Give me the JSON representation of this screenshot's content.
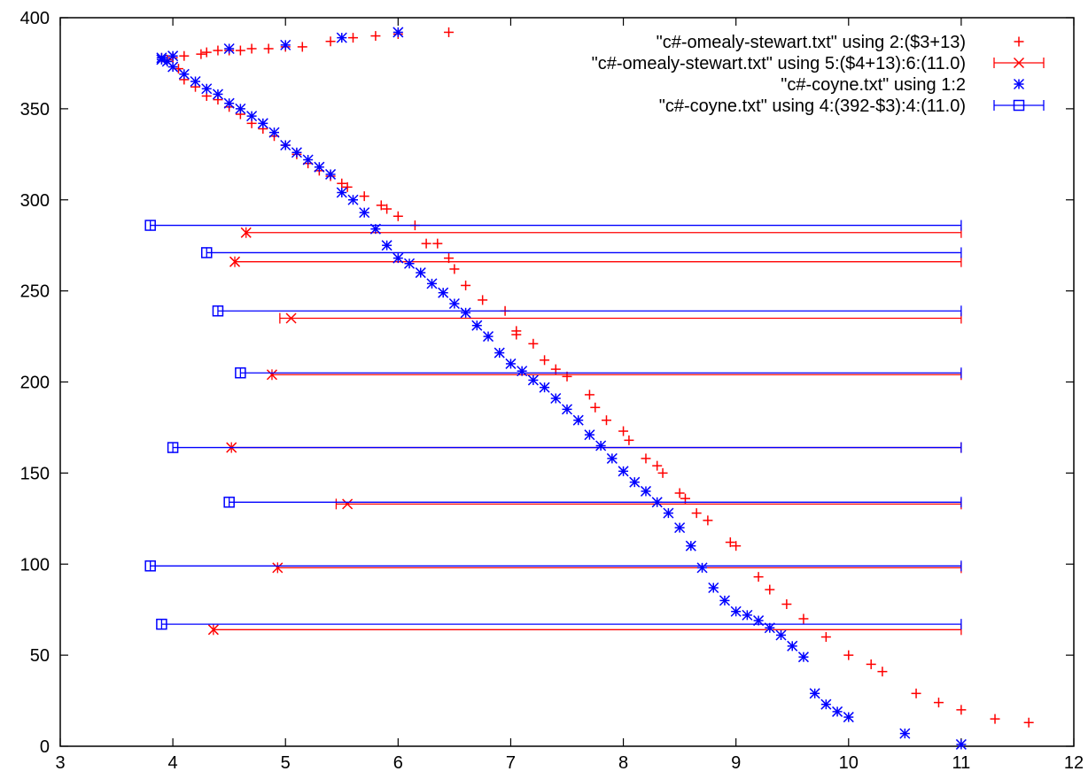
{
  "chart_data": {
    "type": "scatter",
    "title": "",
    "xlabel": "",
    "ylabel": "",
    "xlim": [
      3,
      12
    ],
    "ylim": [
      0,
      400
    ],
    "xticks": [
      3,
      4,
      5,
      6,
      7,
      8,
      9,
      10,
      11,
      12
    ],
    "yticks": [
      0,
      50,
      100,
      150,
      200,
      250,
      300,
      350,
      400
    ],
    "grid": false,
    "legend_position": "top-right",
    "series": [
      {
        "name": "\"c#-omealy-stewart.txt\" using 2:($3+13)",
        "kind": "points",
        "marker": "plus",
        "color": "#ff0000",
        "points": [
          [
            3.9,
            378
          ],
          [
            3.95,
            377
          ],
          [
            4.0,
            378
          ],
          [
            4.1,
            379
          ],
          [
            4.25,
            380
          ],
          [
            4.3,
            381
          ],
          [
            4.4,
            382
          ],
          [
            4.5,
            382
          ],
          [
            4.6,
            382
          ],
          [
            4.7,
            383
          ],
          [
            4.85,
            383
          ],
          [
            5.0,
            384
          ],
          [
            5.15,
            384
          ],
          [
            5.4,
            387
          ],
          [
            5.6,
            389
          ],
          [
            5.8,
            390
          ],
          [
            6.0,
            391
          ],
          [
            6.45,
            392
          ],
          [
            3.95,
            376
          ],
          [
            4.05,
            372
          ],
          [
            4.1,
            366
          ],
          [
            4.2,
            362
          ],
          [
            4.3,
            357
          ],
          [
            4.4,
            355
          ],
          [
            4.5,
            351
          ],
          [
            4.6,
            347
          ],
          [
            4.7,
            342
          ],
          [
            4.8,
            339
          ],
          [
            4.9,
            335
          ],
          [
            5.0,
            330
          ],
          [
            5.1,
            325
          ],
          [
            5.2,
            320
          ],
          [
            5.3,
            316
          ],
          [
            5.4,
            313
          ],
          [
            5.5,
            309
          ],
          [
            5.55,
            307
          ],
          [
            5.7,
            302
          ],
          [
            5.85,
            297
          ],
          [
            5.9,
            295
          ],
          [
            6.0,
            291
          ],
          [
            6.15,
            286
          ],
          [
            6.25,
            276
          ],
          [
            6.35,
            276
          ],
          [
            6.45,
            268
          ],
          [
            6.5,
            262
          ],
          [
            6.6,
            253
          ],
          [
            6.75,
            245
          ],
          [
            6.95,
            239
          ],
          [
            7.05,
            228
          ],
          [
            7.05,
            226
          ],
          [
            7.2,
            221
          ],
          [
            7.3,
            212
          ],
          [
            7.4,
            207
          ],
          [
            7.5,
            203
          ],
          [
            7.7,
            193
          ],
          [
            7.75,
            186
          ],
          [
            7.85,
            179
          ],
          [
            8.0,
            173
          ],
          [
            8.05,
            168
          ],
          [
            8.2,
            158
          ],
          [
            8.3,
            154
          ],
          [
            8.35,
            150
          ],
          [
            8.5,
            139
          ],
          [
            8.55,
            136
          ],
          [
            8.65,
            128
          ],
          [
            8.75,
            124
          ],
          [
            8.95,
            112
          ],
          [
            9.0,
            110
          ],
          [
            9.2,
            93
          ],
          [
            9.3,
            86
          ],
          [
            9.45,
            78
          ],
          [
            9.6,
            70
          ],
          [
            9.8,
            60
          ],
          [
            10.0,
            50
          ],
          [
            10.2,
            45
          ],
          [
            10.3,
            41
          ],
          [
            10.6,
            29
          ],
          [
            10.8,
            24
          ],
          [
            11.0,
            20
          ],
          [
            11.3,
            15
          ],
          [
            11.6,
            13
          ]
        ]
      },
      {
        "name": "\"c#-omealy-stewart.txt\" using 5:($4+13):6:(11.0)",
        "kind": "xerrorbars",
        "marker": "cross",
        "color": "#ff0000",
        "bars": [
          {
            "x": 4.65,
            "y": 282,
            "xlow": 4.65,
            "xhigh": 11.0
          },
          {
            "x": 4.55,
            "y": 266,
            "xlow": 4.55,
            "xhigh": 11.0
          },
          {
            "x": 5.05,
            "y": 235,
            "xlow": 4.95,
            "xhigh": 11.0
          },
          {
            "x": 4.88,
            "y": 204,
            "xlow": 4.88,
            "xhigh": 11.0
          },
          {
            "x": 4.52,
            "y": 164,
            "xlow": 4.52,
            "xhigh": 11.0
          },
          {
            "x": 5.55,
            "y": 133,
            "xlow": 5.45,
            "xhigh": 11.0
          },
          {
            "x": 4.93,
            "y": 98,
            "xlow": 4.93,
            "xhigh": 11.0
          },
          {
            "x": 4.36,
            "y": 64,
            "xlow": 4.36,
            "xhigh": 11.0
          }
        ]
      },
      {
        "name": "\"c#-coyne.txt\" using 1:2",
        "kind": "points",
        "marker": "star",
        "color": "#0000ff",
        "points": [
          [
            3.9,
            378
          ],
          [
            4.0,
            379
          ],
          [
            4.5,
            383
          ],
          [
            5.0,
            385
          ],
          [
            5.5,
            389
          ],
          [
            6.0,
            392
          ],
          [
            3.9,
            377
          ],
          [
            3.95,
            376
          ],
          [
            4.0,
            373
          ],
          [
            4.1,
            369
          ],
          [
            4.2,
            365
          ],
          [
            4.3,
            361
          ],
          [
            4.4,
            358
          ],
          [
            4.5,
            353
          ],
          [
            4.6,
            350
          ],
          [
            4.7,
            346
          ],
          [
            4.8,
            342
          ],
          [
            4.9,
            337
          ],
          [
            5.0,
            330
          ],
          [
            5.1,
            326
          ],
          [
            5.2,
            322
          ],
          [
            5.3,
            318
          ],
          [
            5.4,
            314
          ],
          [
            5.5,
            304
          ],
          [
            5.6,
            300
          ],
          [
            5.7,
            293
          ],
          [
            5.8,
            284
          ],
          [
            5.9,
            275
          ],
          [
            6.0,
            268
          ],
          [
            6.1,
            265
          ],
          [
            6.2,
            260
          ],
          [
            6.3,
            254
          ],
          [
            6.4,
            249
          ],
          [
            6.5,
            243
          ],
          [
            6.6,
            238
          ],
          [
            6.7,
            231
          ],
          [
            6.8,
            225
          ],
          [
            6.9,
            216
          ],
          [
            7.0,
            210
          ],
          [
            7.1,
            206
          ],
          [
            7.2,
            201
          ],
          [
            7.3,
            197
          ],
          [
            7.4,
            191
          ],
          [
            7.5,
            185
          ],
          [
            7.6,
            179
          ],
          [
            7.7,
            171
          ],
          [
            7.8,
            165
          ],
          [
            7.9,
            158
          ],
          [
            8.0,
            151
          ],
          [
            8.1,
            145
          ],
          [
            8.2,
            140
          ],
          [
            8.3,
            134
          ],
          [
            8.4,
            128
          ],
          [
            8.5,
            120
          ],
          [
            8.6,
            110
          ],
          [
            8.7,
            98
          ],
          [
            8.8,
            87
          ],
          [
            8.9,
            80
          ],
          [
            9.0,
            74
          ],
          [
            9.1,
            72
          ],
          [
            9.2,
            69
          ],
          [
            9.3,
            65
          ],
          [
            9.4,
            61
          ],
          [
            9.5,
            55
          ],
          [
            9.6,
            49
          ],
          [
            9.7,
            29
          ],
          [
            9.8,
            23
          ],
          [
            9.9,
            19
          ],
          [
            10.0,
            16
          ],
          [
            10.5,
            7
          ],
          [
            11.0,
            1
          ]
        ]
      },
      {
        "name": "\"c#-coyne.txt\" using 4:(392-$3):4:(11.0)",
        "kind": "xerrorbars",
        "marker": "square",
        "color": "#0000ff",
        "bars": [
          {
            "x": 3.8,
            "y": 286,
            "xlow": 3.8,
            "xhigh": 11.0
          },
          {
            "x": 4.3,
            "y": 271,
            "xlow": 4.3,
            "xhigh": 11.0
          },
          {
            "x": 4.4,
            "y": 239,
            "xlow": 4.4,
            "xhigh": 11.0
          },
          {
            "x": 4.6,
            "y": 205,
            "xlow": 4.6,
            "xhigh": 11.0
          },
          {
            "x": 4.0,
            "y": 164,
            "xlow": 4.0,
            "xhigh": 11.0
          },
          {
            "x": 4.5,
            "y": 134,
            "xlow": 4.5,
            "xhigh": 11.0
          },
          {
            "x": 3.8,
            "y": 99,
            "xlow": 3.8,
            "xhigh": 11.0
          },
          {
            "x": 3.9,
            "y": 67,
            "xlow": 3.9,
            "xhigh": 11.0
          }
        ]
      }
    ]
  }
}
